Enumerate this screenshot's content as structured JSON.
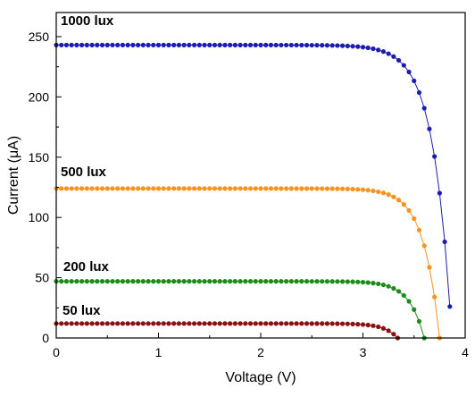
{
  "chart_data": {
    "type": "scatter",
    "title": "",
    "xlabel": "Voltage (V)",
    "ylabel": "Current (μA)",
    "xlim": [
      0,
      4
    ],
    "ylim": [
      0,
      270
    ],
    "xticks": [
      0,
      1,
      2,
      3,
      4
    ],
    "yticks": [
      0,
      50,
      100,
      150,
      200,
      250
    ],
    "xtick_labels": [
      "0",
      "1",
      "2",
      "3",
      "4"
    ],
    "ytick_labels": [
      "0",
      "50",
      "100",
      "150",
      "200",
      "250"
    ],
    "grid": false,
    "legend": "none",
    "series": [
      {
        "name": "1000 lux",
        "color": "#1c1cae",
        "isc": 243,
        "voc": 3.87,
        "shape_k": 22,
        "x": [
          0,
          0.05,
          0.1,
          0.15,
          0.2,
          0.25,
          0.3,
          0.35,
          0.4,
          0.45,
          0.5,
          0.55,
          0.6,
          0.65,
          0.7,
          0.75,
          0.8,
          0.85,
          0.9,
          0.95,
          1.0,
          1.05,
          1.1,
          1.15,
          1.2,
          1.25,
          1.3,
          1.35,
          1.4,
          1.45,
          1.5,
          1.55,
          1.6,
          1.65,
          1.7,
          1.75,
          1.8,
          1.85,
          1.9,
          1.95,
          2.0,
          2.05,
          2.1,
          2.15,
          2.2,
          2.25,
          2.3,
          2.35,
          2.4,
          2.45,
          2.5,
          2.55,
          2.6,
          2.65,
          2.7,
          2.75,
          2.8,
          2.85,
          2.9,
          2.95,
          3.0,
          3.05,
          3.1,
          3.15,
          3.2,
          3.25,
          3.3,
          3.35,
          3.4,
          3.45,
          3.5,
          3.55,
          3.6,
          3.65,
          3.7,
          3.75,
          3.8,
          3.85
        ]
      },
      {
        "name": "500 lux",
        "color": "#f7931e",
        "isc": 124,
        "voc": 3.75,
        "shape_k": 24,
        "x": [
          0,
          0.05,
          0.1,
          0.15,
          0.2,
          0.25,
          0.3,
          0.35,
          0.4,
          0.45,
          0.5,
          0.55,
          0.6,
          0.65,
          0.7,
          0.75,
          0.8,
          0.85,
          0.9,
          0.95,
          1.0,
          1.05,
          1.1,
          1.15,
          1.2,
          1.25,
          1.3,
          1.35,
          1.4,
          1.45,
          1.5,
          1.55,
          1.6,
          1.65,
          1.7,
          1.75,
          1.8,
          1.85,
          1.9,
          1.95,
          2.0,
          2.05,
          2.1,
          2.15,
          2.2,
          2.25,
          2.3,
          2.35,
          2.4,
          2.45,
          2.5,
          2.55,
          2.6,
          2.65,
          2.7,
          2.75,
          2.8,
          2.85,
          2.9,
          2.95,
          3.0,
          3.05,
          3.1,
          3.15,
          3.2,
          3.25,
          3.3,
          3.35,
          3.4,
          3.45,
          3.5,
          3.55,
          3.6,
          3.65,
          3.7,
          3.75
        ]
      },
      {
        "name": "200 lux",
        "color": "#1a8c1a",
        "isc": 47,
        "voc": 3.6,
        "shape_k": 25,
        "x": [
          0,
          0.05,
          0.1,
          0.15,
          0.2,
          0.25,
          0.3,
          0.35,
          0.4,
          0.45,
          0.5,
          0.55,
          0.6,
          0.65,
          0.7,
          0.75,
          0.8,
          0.85,
          0.9,
          0.95,
          1.0,
          1.05,
          1.1,
          1.15,
          1.2,
          1.25,
          1.3,
          1.35,
          1.4,
          1.45,
          1.5,
          1.55,
          1.6,
          1.65,
          1.7,
          1.75,
          1.8,
          1.85,
          1.9,
          1.95,
          2.0,
          2.05,
          2.1,
          2.15,
          2.2,
          2.25,
          2.3,
          2.35,
          2.4,
          2.45,
          2.5,
          2.55,
          2.6,
          2.65,
          2.7,
          2.75,
          2.8,
          2.85,
          2.9,
          2.95,
          3.0,
          3.05,
          3.1,
          3.15,
          3.2,
          3.25,
          3.3,
          3.35,
          3.4,
          3.45,
          3.5,
          3.55,
          3.6
        ]
      },
      {
        "name": "50 lux",
        "color": "#8b1010",
        "isc": 12,
        "voc": 3.34,
        "shape_k": 26,
        "x": [
          0,
          0.05,
          0.1,
          0.15,
          0.2,
          0.25,
          0.3,
          0.35,
          0.4,
          0.45,
          0.5,
          0.55,
          0.6,
          0.65,
          0.7,
          0.75,
          0.8,
          0.85,
          0.9,
          0.95,
          1.0,
          1.05,
          1.1,
          1.15,
          1.2,
          1.25,
          1.3,
          1.35,
          1.4,
          1.45,
          1.5,
          1.55,
          1.6,
          1.65,
          1.7,
          1.75,
          1.8,
          1.85,
          1.9,
          1.95,
          2.0,
          2.05,
          2.1,
          2.15,
          2.2,
          2.25,
          2.3,
          2.35,
          2.4,
          2.45,
          2.5,
          2.55,
          2.6,
          2.65,
          2.7,
          2.75,
          2.8,
          2.85,
          2.9,
          2.95,
          3.0,
          3.05,
          3.1,
          3.15,
          3.2,
          3.25,
          3.3,
          3.34
        ]
      }
    ]
  }
}
